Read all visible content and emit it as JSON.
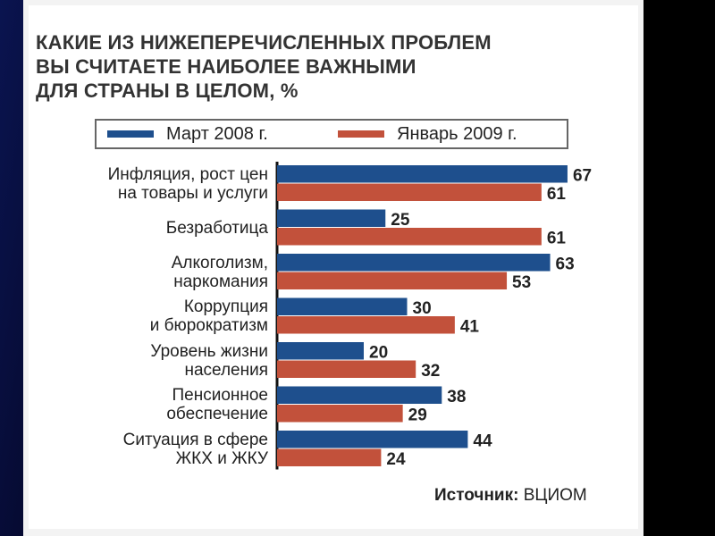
{
  "title": "КАКИЕ ИЗ НИЖЕПЕРЕЧИСЛЕННЫХ ПРОБЛЕМ\nВЫ СЧИТАЕТЕ НАИБОЛЕЕ ВАЖНЫМИ\nДЛЯ СТРАНЫ В ЦЕЛОМ, %",
  "source": {
    "label": "Источник:",
    "value": "ВЦИОМ"
  },
  "colors": {
    "series1": "#1e4f8d",
    "series2": "#c2513b",
    "axis": "#111111"
  },
  "chart_data": {
    "type": "bar",
    "orientation": "horizontal",
    "title": "КАКИЕ ИЗ НИЖЕПЕРЕЧИСЛЕННЫХ ПРОБЛЕМ ВЫ СЧИТАЕТЕ НАИБОЛЕЕ ВАЖНЫМИ ДЛЯ СТРАНЫ В ЦЕЛОМ, %",
    "categories": [
      "Инфляция, рост цен\nна товары и услуги",
      "Безработица",
      "Алкоголизм,\nнаркомания",
      "Коррупция\nи бюрократизм",
      "Уровень жизни\nнаселения",
      "Пенсионное\nобеспечение",
      "Ситуация в сфере\nЖКХ и ЖКУ"
    ],
    "series": [
      {
        "name": "Март 2008 г.",
        "values": [
          67,
          25,
          63,
          30,
          20,
          38,
          44
        ]
      },
      {
        "name": "Январь 2009 г.",
        "values": [
          61,
          61,
          53,
          41,
          32,
          29,
          24
        ]
      }
    ],
    "xlim": [
      0,
      67
    ],
    "legend_position": "top",
    "grid": false
  }
}
